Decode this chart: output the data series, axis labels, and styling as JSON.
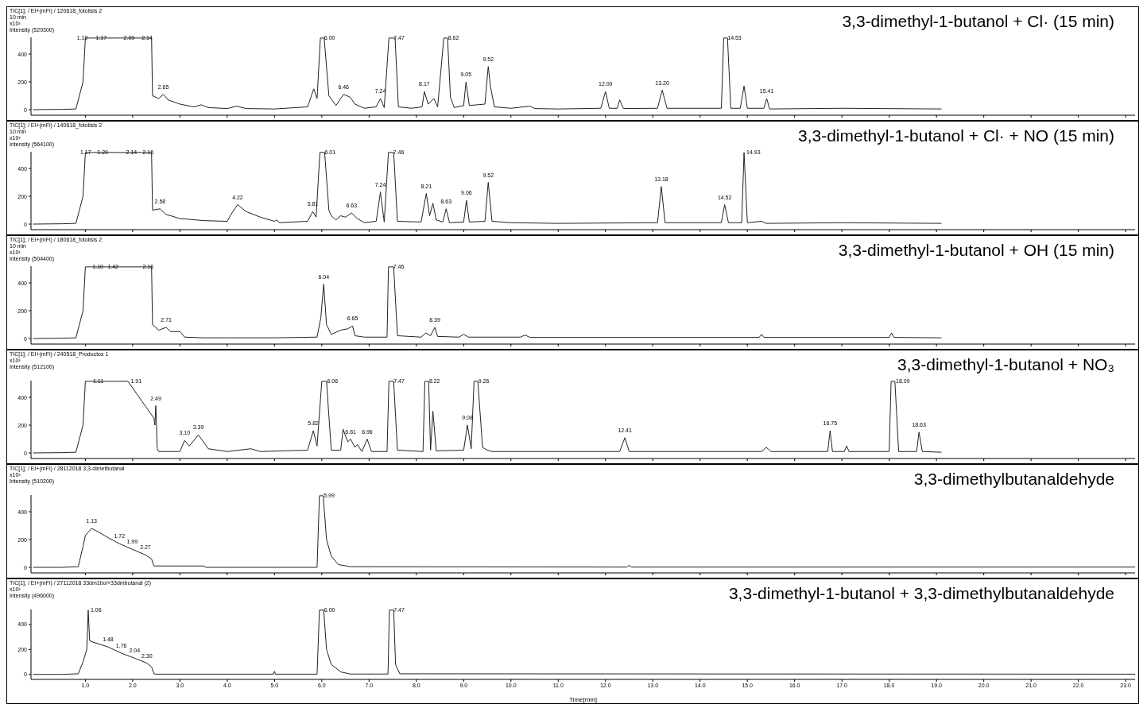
{
  "chart_data": [
    {
      "type": "line",
      "title": "3,3-dimethyl-1-butanol + Cl· (15 min)",
      "tick_labels": "y",
      "xlim": [
        -0.15,
        23.2
      ],
      "ylim": [
        -40,
        520
      ],
      "yticks": [
        0,
        200,
        400
      ],
      "xticks": [
        1,
        2,
        3,
        4,
        5,
        6,
        7,
        8,
        9,
        10,
        11,
        12,
        13,
        14,
        15,
        16,
        17,
        18,
        19,
        20,
        21,
        22,
        23
      ],
      "series": [
        {
          "color": "#222222",
          "x": [
            -0.1,
            0.5,
            0.8,
            0.95,
            1.0,
            1.1,
            2.4,
            2.42,
            2.55,
            2.65,
            2.75,
            3.0,
            3.3,
            3.45,
            3.6,
            4.0,
            4.2,
            4.4,
            5.0,
            5.7,
            5.83,
            5.9,
            5.97,
            6.05,
            6.15,
            6.3,
            6.46,
            6.6,
            6.7,
            6.9,
            7.15,
            7.24,
            7.32,
            7.42,
            7.55,
            7.62,
            7.9,
            8.12,
            8.17,
            8.25,
            8.37,
            8.45,
            8.58,
            8.66,
            8.72,
            8.8,
            9.0,
            9.05,
            9.12,
            9.45,
            9.52,
            9.57,
            9.65,
            10.0,
            10.4,
            10.5,
            11.0,
            11.9,
            12.0,
            12.08,
            12.25,
            12.3,
            12.38,
            13.1,
            13.2,
            13.3,
            14.45,
            14.5,
            14.58,
            14.65,
            14.85,
            14.93,
            15.0,
            15.35,
            15.41,
            15.47,
            17.0,
            19.1
          ],
          "values": [
            0,
            2,
            5,
            200,
            515,
            515,
            515,
            100,
            80,
            110,
            70,
            40,
            20,
            35,
            15,
            8,
            25,
            8,
            5,
            20,
            150,
            80,
            515,
            515,
            100,
            30,
            110,
            90,
            40,
            10,
            20,
            80,
            15,
            515,
            515,
            20,
            10,
            20,
            130,
            40,
            80,
            20,
            515,
            515,
            90,
            15,
            30,
            200,
            30,
            40,
            310,
            160,
            20,
            10,
            25,
            8,
            5,
            10,
            130,
            10,
            10,
            70,
            8,
            10,
            140,
            10,
            10,
            515,
            515,
            10,
            10,
            170,
            10,
            10,
            80,
            5,
            10,
            5
          ]
        }
      ],
      "annotations": [
        "TIC[1]; / EI+(mFi) / 120618_fotolisis 2",
        "10 min",
        "x10³",
        "Intensity (529300)",
        {
          "text": "1.10",
          "x": 1.1,
          "y": 515
        },
        {
          "text": "1.17",
          "x": 1.17,
          "y": 515
        },
        {
          "text": "2.09",
          "x": 2.09,
          "y": 515
        },
        {
          "text": "2.14",
          "x": 2.14,
          "y": 515
        },
        {
          "text": "2.65",
          "x": 2.65,
          "y": 110
        },
        {
          "text": "6.00",
          "x": 6.0,
          "y": 515
        },
        {
          "text": "6.46",
          "x": 6.46,
          "y": 110
        },
        {
          "text": "7.24",
          "x": 7.24,
          "y": 80
        },
        {
          "text": "7.47",
          "x": 7.47,
          "y": 515
        },
        {
          "text": "8.17",
          "x": 8.17,
          "y": 130
        },
        {
          "text": "8.62",
          "x": 8.62,
          "y": 515
        },
        {
          "text": "9.05",
          "x": 9.05,
          "y": 200
        },
        {
          "text": "9.52",
          "x": 9.52,
          "y": 310
        },
        {
          "text": "12.00",
          "x": 12.0,
          "y": 130
        },
        {
          "text": "13.20",
          "x": 13.2,
          "y": 140
        },
        {
          "text": "14.53",
          "x": 14.53,
          "y": 515
        },
        {
          "text": "15.41",
          "x": 15.41,
          "y": 80
        }
      ]
    },
    {
      "type": "line",
      "title": "3,3-dimethyl-1-butanol + Cl· + NO (15 min)",
      "tick_labels": "y",
      "xlim": [
        -0.15,
        23.2
      ],
      "ylim": [
        -40,
        520
      ],
      "yticks": [
        0,
        200,
        400
      ],
      "xticks": [
        1,
        2,
        3,
        4,
        5,
        6,
        7,
        8,
        9,
        10,
        11,
        12,
        13,
        14,
        15,
        16,
        17,
        18,
        19,
        20,
        21,
        22,
        23
      ],
      "series": [
        {
          "color": "#222222",
          "x": [
            -0.1,
            0.5,
            0.8,
            0.95,
            1.0,
            1.1,
            2.4,
            2.42,
            2.58,
            2.7,
            3.0,
            3.5,
            4.0,
            4.1,
            4.22,
            4.4,
            4.7,
            5.0,
            5.05,
            5.1,
            5.7,
            5.81,
            5.88,
            5.96,
            6.06,
            6.15,
            6.2,
            6.3,
            6.4,
            6.5,
            6.63,
            6.75,
            6.9,
            7.15,
            7.24,
            7.32,
            7.41,
            7.52,
            7.6,
            8.1,
            8.21,
            8.28,
            8.35,
            8.42,
            8.56,
            8.63,
            8.7,
            9.0,
            9.06,
            9.12,
            9.45,
            9.52,
            9.6,
            10.0,
            11.0,
            13.1,
            13.18,
            13.26,
            14.45,
            14.52,
            14.6,
            14.88,
            14.93,
            15.0,
            15.3,
            15.4,
            17.0,
            19.1
          ],
          "values": [
            0,
            2,
            5,
            200,
            515,
            515,
            515,
            100,
            110,
            70,
            40,
            25,
            20,
            80,
            140,
            90,
            50,
            20,
            30,
            10,
            20,
            90,
            50,
            515,
            515,
            100,
            60,
            30,
            60,
            50,
            80,
            40,
            10,
            20,
            230,
            15,
            515,
            515,
            20,
            15,
            220,
            60,
            150,
            30,
            15,
            110,
            10,
            15,
            170,
            15,
            20,
            300,
            20,
            10,
            5,
            10,
            270,
            10,
            10,
            140,
            10,
            10,
            515,
            10,
            20,
            5,
            10,
            5
          ]
        }
      ],
      "annotations": [
        "TIC[1]; / EI+(mFi) / 140618_fotolisis 2",
        "10 min",
        "x10³",
        "Intensity (564100)",
        {
          "text": "1.17",
          "x": 1.17,
          "y": 515
        },
        {
          "text": "1.20",
          "x": 1.2,
          "y": 515
        },
        {
          "text": "2.14",
          "x": 2.14,
          "y": 515
        },
        {
          "text": "2.16",
          "x": 2.16,
          "y": 515
        },
        {
          "text": "2.58",
          "x": 2.58,
          "y": 110
        },
        {
          "text": "4.22",
          "x": 4.22,
          "y": 140
        },
        {
          "text": "5.81",
          "x": 5.81,
          "y": 90
        },
        {
          "text": "6.01",
          "x": 6.01,
          "y": 515
        },
        {
          "text": "6.63",
          "x": 6.63,
          "y": 80
        },
        {
          "text": "7.24",
          "x": 7.24,
          "y": 230
        },
        {
          "text": "7.46",
          "x": 7.46,
          "y": 515
        },
        {
          "text": "8.21",
          "x": 8.21,
          "y": 220
        },
        {
          "text": "8.63",
          "x": 8.63,
          "y": 110
        },
        {
          "text": "9.06",
          "x": 9.06,
          "y": 170
        },
        {
          "text": "9.52",
          "x": 9.52,
          "y": 300
        },
        {
          "text": "13.18",
          "x": 13.18,
          "y": 270
        },
        {
          "text": "14.52",
          "x": 14.52,
          "y": 140
        },
        {
          "text": "14.93",
          "x": 14.93,
          "y": 515
        }
      ]
    },
    {
      "type": "line",
      "title": "3,3-dimethyl-1-butanol + OH (15 min)",
      "tick_labels": "y",
      "xlim": [
        -0.15,
        23.2
      ],
      "ylim": [
        -40,
        520
      ],
      "yticks": [
        0,
        200,
        400
      ],
      "xticks": [
        1,
        2,
        3,
        4,
        5,
        6,
        7,
        8,
        9,
        10,
        11,
        12,
        13,
        14,
        15,
        16,
        17,
        18,
        19,
        20,
        21,
        22,
        23
      ],
      "series": [
        {
          "color": "#222222",
          "x": [
            -0.1,
            0.5,
            0.8,
            0.95,
            1.0,
            1.1,
            2.4,
            2.42,
            2.55,
            2.71,
            2.8,
            3.0,
            3.1,
            3.5,
            4.0,
            5.0,
            5.9,
            5.98,
            6.04,
            6.1,
            6.2,
            6.4,
            6.55,
            6.65,
            6.7,
            6.9,
            7.2,
            7.38,
            7.41,
            7.52,
            7.6,
            8.1,
            8.2,
            8.3,
            8.39,
            8.45,
            8.9,
            9.0,
            9.1,
            10.2,
            10.3,
            10.4,
            12.0,
            15.25,
            15.3,
            15.35,
            18.0,
            18.05,
            18.1,
            19.1
          ],
          "values": [
            0,
            2,
            5,
            200,
            515,
            515,
            515,
            100,
            60,
            80,
            50,
            50,
            10,
            5,
            5,
            5,
            10,
            150,
            390,
            100,
            30,
            60,
            70,
            90,
            20,
            10,
            10,
            10,
            515,
            515,
            20,
            10,
            40,
            20,
            80,
            15,
            10,
            30,
            10,
            10,
            25,
            8,
            8,
            8,
            30,
            8,
            8,
            40,
            8,
            5
          ]
        }
      ],
      "annotations": [
        "TIC[1]; / EI+(mFi) / 180618_fotolisis 2",
        "10 min",
        "x10³",
        "Intensity (504400)",
        {
          "text": "1.10",
          "x": 1.1,
          "y": 515
        },
        {
          "text": "1.42",
          "x": 1.42,
          "y": 515
        },
        {
          "text": "2.16",
          "x": 2.16,
          "y": 515
        },
        {
          "text": "2.71",
          "x": 2.71,
          "y": 80
        },
        {
          "text": "6.04",
          "x": 6.04,
          "y": 390
        },
        {
          "text": "6.65",
          "x": 6.65,
          "y": 90
        },
        {
          "text": "7.46",
          "x": 7.46,
          "y": 515
        },
        {
          "text": "8.39",
          "x": 8.39,
          "y": 80
        }
      ]
    },
    {
      "type": "line",
      "title": "3,3-dimethyl-1-butanol + NO₃",
      "tick_labels": "y",
      "xlim": [
        -0.15,
        23.2
      ],
      "ylim": [
        -40,
        520
      ],
      "yticks": [
        0,
        200,
        400
      ],
      "xticks": [
        1,
        2,
        3,
        4,
        5,
        6,
        7,
        8,
        9,
        10,
        11,
        12,
        13,
        14,
        15,
        16,
        17,
        18,
        19,
        20,
        21,
        22,
        23
      ],
      "series": [
        {
          "color": "#222222",
          "x": [
            -0.1,
            0.5,
            0.8,
            0.95,
            1.0,
            1.9,
            2.45,
            2.47,
            2.49,
            2.52,
            2.55,
            3.0,
            3.1,
            3.2,
            3.39,
            3.6,
            4.0,
            4.5,
            4.7,
            5.7,
            5.82,
            5.9,
            6.0,
            6.1,
            6.2,
            6.4,
            6.45,
            6.55,
            6.61,
            6.7,
            6.75,
            6.85,
            6.96,
            7.05,
            7.38,
            7.42,
            7.52,
            7.6,
            8.14,
            8.18,
            8.26,
            8.3,
            8.35,
            8.42,
            9.0,
            9.08,
            9.16,
            9.22,
            9.3,
            9.4,
            9.5,
            9.6,
            10.0,
            12.3,
            12.41,
            12.5,
            15.3,
            15.4,
            15.5,
            16.7,
            16.75,
            16.8,
            17.05,
            17.1,
            17.15,
            18.0,
            18.04,
            18.12,
            18.2,
            18.58,
            18.63,
            18.7,
            19.1
          ],
          "values": [
            0,
            2,
            5,
            200,
            515,
            515,
            250,
            200,
            340,
            30,
            10,
            10,
            90,
            50,
            130,
            30,
            10,
            30,
            10,
            20,
            160,
            50,
            515,
            515,
            20,
            20,
            170,
            80,
            100,
            40,
            60,
            10,
            100,
            10,
            10,
            515,
            515,
            20,
            10,
            515,
            515,
            20,
            300,
            15,
            20,
            200,
            30,
            515,
            515,
            40,
            20,
            10,
            10,
            10,
            110,
            10,
            10,
            40,
            10,
            10,
            160,
            10,
            10,
            50,
            10,
            10,
            515,
            515,
            10,
            10,
            150,
            10,
            5
          ]
        }
      ],
      "annotations": [
        "TIC[1]; / EI+(mFi) / 240518_Productos 1",
        "x10³",
        "Intensity (512100)",
        {
          "text": "1.11",
          "x": 1.11,
          "y": 515
        },
        {
          "text": "1.91",
          "x": 1.91,
          "y": 515
        },
        {
          "text": "2.49",
          "x": 2.49,
          "y": 340
        },
        {
          "text": "3.10",
          "x": 3.1,
          "y": 90
        },
        {
          "text": "3.39",
          "x": 3.39,
          "y": 130
        },
        {
          "text": "5.82",
          "x": 5.82,
          "y": 160
        },
        {
          "text": "6.06",
          "x": 6.06,
          "y": 515
        },
        {
          "text": "6.61",
          "x": 6.61,
          "y": 100
        },
        {
          "text": "6.96",
          "x": 6.96,
          "y": 100
        },
        {
          "text": "7.47",
          "x": 7.47,
          "y": 515
        },
        {
          "text": "8.22",
          "x": 8.22,
          "y": 515
        },
        {
          "text": "9.08",
          "x": 9.08,
          "y": 200
        },
        {
          "text": "9.26",
          "x": 9.26,
          "y": 515
        },
        {
          "text": "12.41",
          "x": 12.41,
          "y": 110
        },
        {
          "text": "16.75",
          "x": 16.75,
          "y": 160
        },
        {
          "text": "18.09",
          "x": 18.09,
          "y": 515
        },
        {
          "text": "18.63",
          "x": 18.63,
          "y": 150
        }
      ]
    },
    {
      "type": "line",
      "title": "3,3-dimethylbutanaldehyde",
      "tick_labels": "y",
      "xlim": [
        -0.15,
        23.2
      ],
      "ylim": [
        -40,
        520
      ],
      "yticks": [
        0,
        200,
        400
      ],
      "xticks": [
        1,
        2,
        3,
        4,
        5,
        6,
        7,
        8,
        9,
        10,
        11,
        12,
        13,
        14,
        15,
        16,
        17,
        18,
        19,
        20,
        21,
        22,
        23
      ],
      "series": [
        {
          "color": "#222222",
          "x": [
            -0.1,
            0.5,
            0.85,
            0.95,
            1.0,
            1.13,
            1.3,
            1.5,
            1.72,
            1.99,
            2.27,
            2.4,
            2.45,
            2.5,
            3.5,
            3.55,
            5.9,
            5.95,
            6.03,
            6.1,
            6.2,
            6.35,
            6.6,
            12.45,
            12.5,
            12.55,
            23.2
          ],
          "values": [
            0,
            0,
            5,
            150,
            230,
            280,
            250,
            210,
            170,
            130,
            90,
            60,
            10,
            10,
            10,
            0,
            0,
            515,
            515,
            200,
            80,
            20,
            5,
            2,
            15,
            2,
            2
          ]
        }
      ],
      "annotations": [
        "TIC[1]; / EI+(mFi) / 28112018 3,3-dimetbutanal",
        "x10³",
        "Intensity (510200)",
        {
          "text": "1.13",
          "x": 1.13,
          "y": 280
        },
        {
          "text": "1.72",
          "x": 1.72,
          "y": 170
        },
        {
          "text": "1.99",
          "x": 1.99,
          "y": 130
        },
        {
          "text": "2.27",
          "x": 2.27,
          "y": 90
        },
        {
          "text": "5.99",
          "x": 5.99,
          "y": 515
        }
      ]
    },
    {
      "type": "line",
      "title": "3,3-dimethyl-1-butanol + 3,3-dimethylbutanaldehyde",
      "xlabel": "Time[min]",
      "xlim": [
        -0.15,
        23.2
      ],
      "ylim": [
        -40,
        520
      ],
      "yticks": [
        0,
        200,
        400
      ],
      "xticks": [
        {
          "value": 1,
          "label": "1.0"
        },
        {
          "value": 2,
          "label": "2.0"
        },
        {
          "value": 3,
          "label": "3.0"
        },
        {
          "value": 4,
          "label": "4.0"
        },
        {
          "value": 5,
          "label": "5.0"
        },
        {
          "value": 6,
          "label": "6.0"
        },
        {
          "value": 7,
          "label": "7.0"
        },
        {
          "value": 8,
          "label": "8.0"
        },
        {
          "value": 9,
          "label": "9.0"
        },
        {
          "value": 10,
          "label": "10.0"
        },
        {
          "value": 11,
          "label": "11.0"
        },
        {
          "value": 12,
          "label": "12.0"
        },
        {
          "value": 13,
          "label": "13.0"
        },
        {
          "value": 14,
          "label": "14.0"
        },
        {
          "value": 15,
          "label": "15.0"
        },
        {
          "value": 16,
          "label": "16.0"
        },
        {
          "value": 17,
          "label": "17.0"
        },
        {
          "value": 18,
          "label": "18.0"
        },
        {
          "value": 19,
          "label": "19.0"
        },
        {
          "value": 20,
          "label": "20.0"
        },
        {
          "value": 21,
          "label": "21.0"
        },
        {
          "value": 22,
          "label": "22.0"
        },
        {
          "value": 23,
          "label": "23.0"
        }
      ],
      "series": [
        {
          "color": "#222222",
          "x": [
            -0.1,
            0.5,
            0.85,
            0.95,
            1.03,
            1.06,
            1.09,
            1.15,
            1.48,
            1.76,
            2.04,
            2.3,
            2.4,
            2.45,
            2.5,
            4.98,
            5.0,
            5.02,
            5.9,
            5.95,
            6.04,
            6.1,
            6.2,
            6.4,
            6.6,
            7.4,
            7.43,
            7.52,
            7.56,
            7.65,
            23.2
          ],
          "values": [
            0,
            0,
            5,
            100,
            200,
            515,
            270,
            260,
            220,
            170,
            130,
            90,
            60,
            5,
            2,
            2,
            25,
            2,
            2,
            515,
            515,
            200,
            80,
            20,
            3,
            3,
            515,
            515,
            80,
            5,
            2
          ]
        }
      ],
      "annotations": [
        "TIC[1]; / EI+(mFi) / 27112018 33dm1bol+33dmbutanal (2)",
        "x10³",
        "Intensity (496000)",
        {
          "text": "1.06",
          "x": 1.06,
          "y": 515
        },
        {
          "text": "1.48",
          "x": 1.48,
          "y": 220
        },
        {
          "text": "1.76",
          "x": 1.76,
          "y": 170
        },
        {
          "text": "2.04",
          "x": 2.04,
          "y": 130
        },
        {
          "text": "2.30",
          "x": 2.3,
          "y": 90
        },
        {
          "text": "6.00",
          "x": 6.0,
          "y": 515
        },
        {
          "text": "7.47",
          "x": 7.47,
          "y": 515
        }
      ]
    }
  ]
}
